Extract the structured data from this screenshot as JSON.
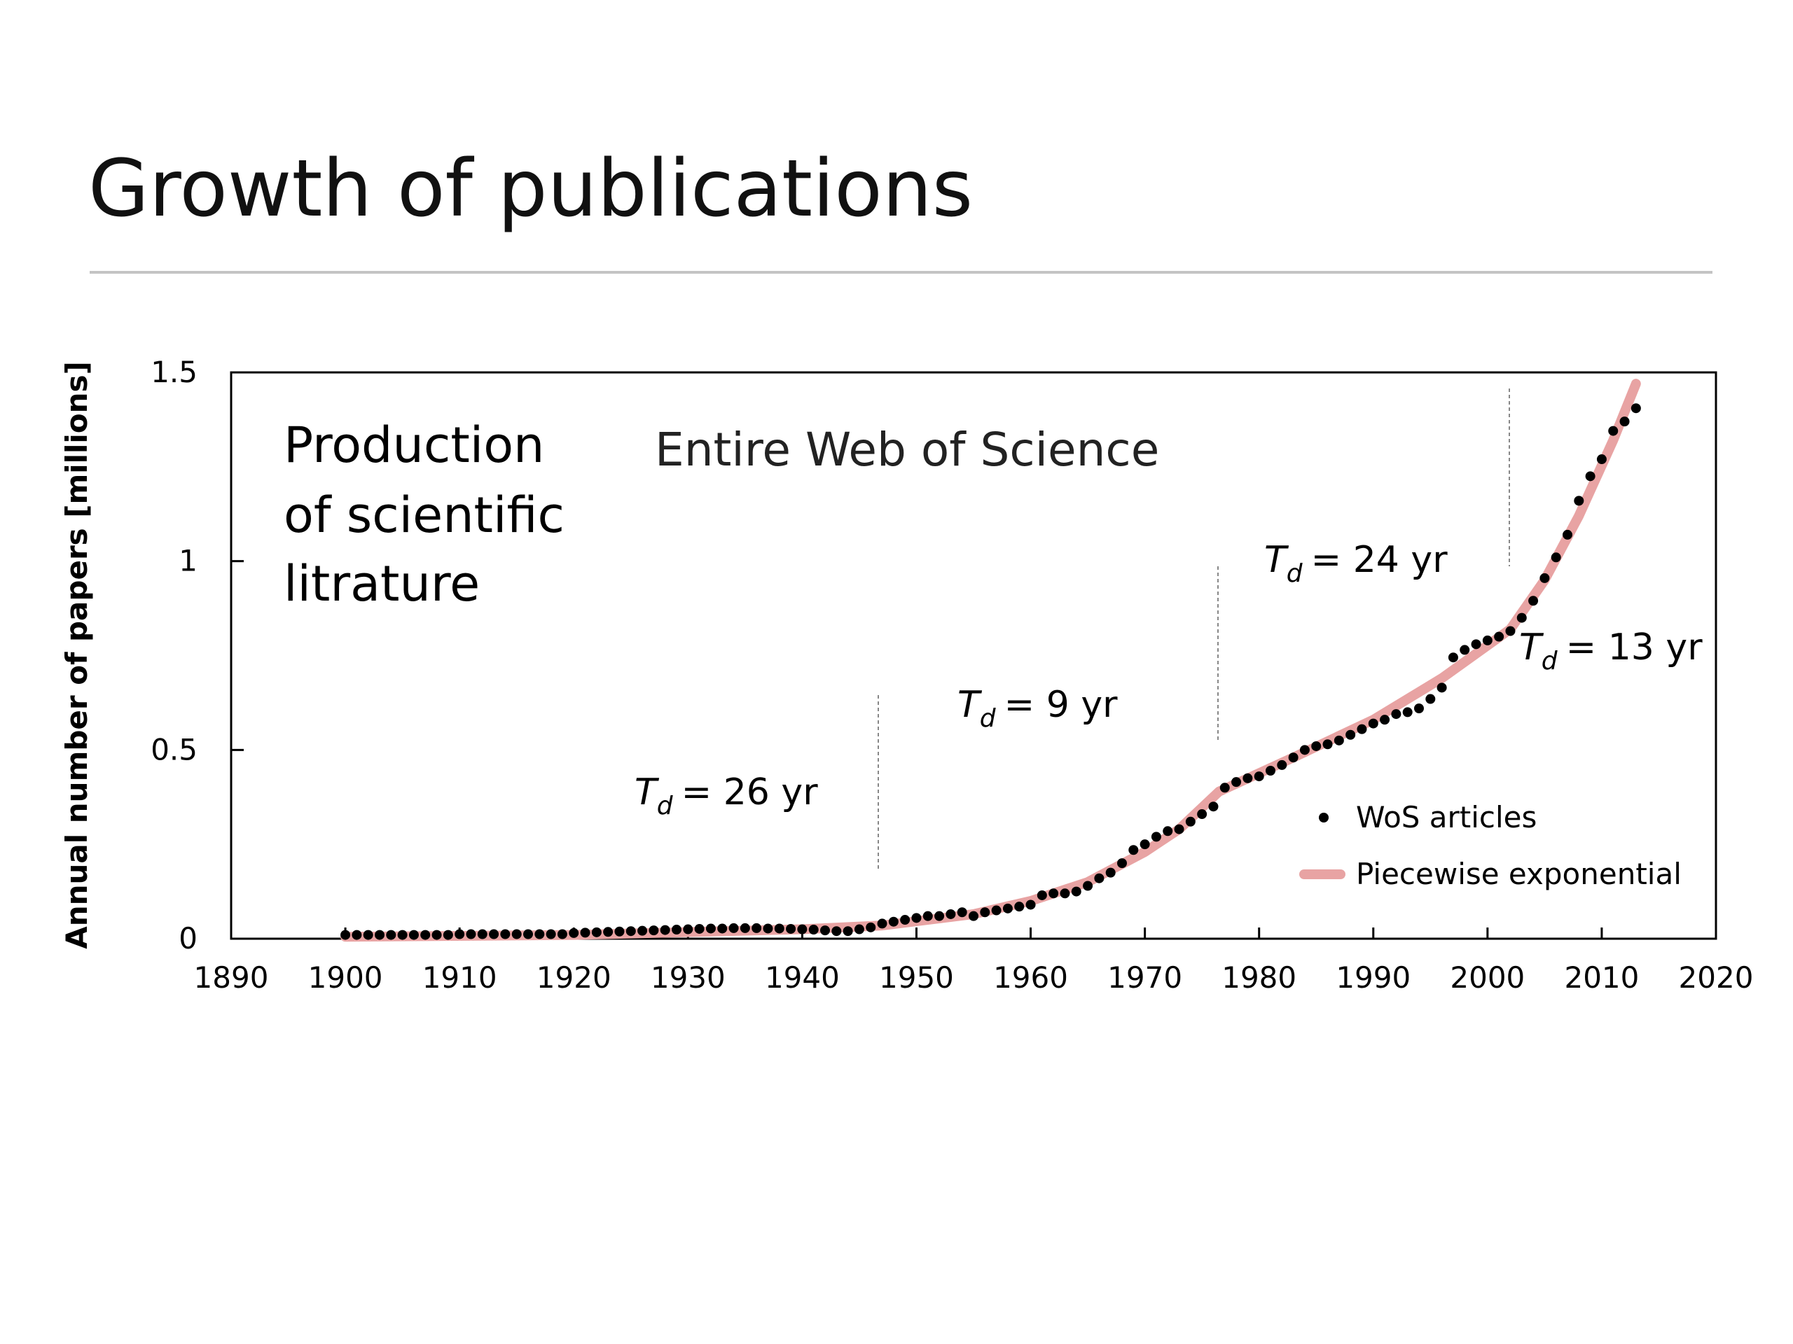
{
  "chart_data": {
    "type": "scatter",
    "title": "Growth of publications",
    "ylabel": "Annual number of papers [millions]",
    "annotation_lines": [
      "Production",
      "of scientific",
      "litrature"
    ],
    "subtitle": "Entire Web of Science",
    "doubling": {
      "symbol": "T",
      "subscript": "d",
      "labels": [
        "= 26 yr",
        "= 9 yr",
        "= 24 yr",
        "= 13 yr"
      ]
    },
    "xlim": [
      1890,
      2020
    ],
    "xticks": [
      1890,
      1900,
      1910,
      1920,
      1930,
      1940,
      1950,
      1960,
      1970,
      1980,
      1990,
      2000,
      2010,
      2020
    ],
    "ylim": [
      0,
      1.5
    ],
    "yticks": [
      0,
      0.5,
      1,
      1.5
    ],
    "series": [
      {
        "name": "WoS articles",
        "color": "#000000",
        "x": [
          1900,
          1901,
          1902,
          1903,
          1904,
          1905,
          1906,
          1907,
          1908,
          1909,
          1910,
          1911,
          1912,
          1913,
          1914,
          1915,
          1916,
          1917,
          1918,
          1919,
          1920,
          1921,
          1922,
          1923,
          1924,
          1925,
          1926,
          1927,
          1928,
          1929,
          1930,
          1931,
          1932,
          1933,
          1934,
          1935,
          1936,
          1937,
          1938,
          1939,
          1940,
          1941,
          1942,
          1943,
          1944,
          1945,
          1946,
          1947,
          1948,
          1949,
          1950,
          1951,
          1952,
          1953,
          1954,
          1955,
          1956,
          1957,
          1958,
          1959,
          1960,
          1961,
          1962,
          1963,
          1964,
          1965,
          1966,
          1967,
          1968,
          1969,
          1970,
          1971,
          1972,
          1973,
          1974,
          1975,
          1976,
          1977,
          1978,
          1979,
          1980,
          1981,
          1982,
          1983,
          1984,
          1985,
          1986,
          1987,
          1988,
          1989,
          1990,
          1991,
          1992,
          1993,
          1994,
          1995,
          1996,
          1997,
          1998,
          1999,
          2000,
          2001,
          2002,
          2003,
          2004,
          2005,
          2006,
          2007,
          2008,
          2009,
          2010,
          2011,
          2012,
          2013
        ],
        "values": [
          0.01,
          0.01,
          0.01,
          0.01,
          0.01,
          0.01,
          0.01,
          0.01,
          0.01,
          0.01,
          0.012,
          0.012,
          0.012,
          0.012,
          0.012,
          0.012,
          0.012,
          0.012,
          0.012,
          0.012,
          0.015,
          0.016,
          0.017,
          0.018,
          0.019,
          0.02,
          0.021,
          0.022,
          0.023,
          0.024,
          0.025,
          0.026,
          0.027,
          0.027,
          0.028,
          0.028,
          0.028,
          0.027,
          0.027,
          0.026,
          0.025,
          0.024,
          0.022,
          0.02,
          0.02,
          0.025,
          0.03,
          0.04,
          0.045,
          0.05,
          0.055,
          0.06,
          0.06,
          0.065,
          0.07,
          0.06,
          0.07,
          0.075,
          0.08,
          0.085,
          0.09,
          0.115,
          0.12,
          0.12,
          0.125,
          0.14,
          0.16,
          0.175,
          0.2,
          0.235,
          0.25,
          0.27,
          0.285,
          0.29,
          0.31,
          0.33,
          0.35,
          0.4,
          0.415,
          0.425,
          0.43,
          0.445,
          0.46,
          0.48,
          0.5,
          0.51,
          0.515,
          0.525,
          0.54,
          0.555,
          0.57,
          0.58,
          0.595,
          0.6,
          0.61,
          0.635,
          0.665,
          0.745,
          0.765,
          0.78,
          0.79,
          0.8,
          0.815,
          0.85,
          0.895,
          0.955,
          1.01,
          1.07,
          1.16,
          1.225,
          1.27,
          1.345,
          1.37,
          1.405
        ]
      },
      {
        "name": "Piecewise exponential",
        "color": "#e8a3a3",
        "type": "line",
        "x": [
          1900,
          1920,
          1940,
          1947,
          1955,
          1960,
          1965,
          1970,
          1973,
          1976.5,
          1983,
          1990,
          1996,
          2002,
          2005,
          2008,
          2011,
          2013
        ],
        "values": [
          0.005,
          0.01,
          0.025,
          0.035,
          0.065,
          0.1,
          0.15,
          0.23,
          0.29,
          0.39,
          0.48,
          0.58,
          0.69,
          0.82,
          0.95,
          1.12,
          1.32,
          1.47
        ]
      }
    ]
  }
}
